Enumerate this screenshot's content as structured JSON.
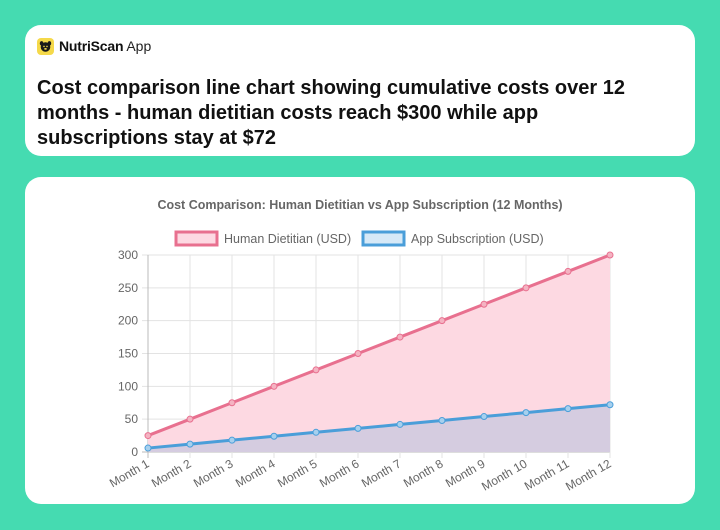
{
  "brand": {
    "name": "NutriScan",
    "suffix": "App",
    "logo_icon": "dog-face-icon"
  },
  "headline": "Cost comparison line chart showing cumulative costs over 12 months - human dietitian costs reach $300 while app subscriptions stay at $72",
  "colors": {
    "background": "#45dbb1",
    "human": "#e8708f",
    "human_fill": "#fdd9e2",
    "app": "#4a9ed9",
    "app_fill": "rgba(74,158,217,0.22)"
  },
  "chart_data": {
    "type": "line",
    "title": "Cost Comparison: Human Dietitian vs App Subscription (12 Months)",
    "categories": [
      "Month 1",
      "Month 2",
      "Month 3",
      "Month 4",
      "Month 5",
      "Month 6",
      "Month 7",
      "Month 8",
      "Month 9",
      "Month 10",
      "Month 11",
      "Month 12"
    ],
    "series": [
      {
        "name": "Human Dietitian (USD)",
        "values": [
          25,
          50,
          75,
          100,
          125,
          150,
          175,
          200,
          225,
          250,
          275,
          300
        ],
        "fill": true
      },
      {
        "name": "App Subscription (USD)",
        "values": [
          6,
          12,
          18,
          24,
          30,
          36,
          42,
          48,
          54,
          60,
          66,
          72
        ],
        "fill": true
      }
    ],
    "ylim": [
      0,
      300
    ],
    "yticks": [
      0,
      50,
      100,
      150,
      200,
      250,
      300
    ],
    "grid": true,
    "legend": "top-center"
  }
}
